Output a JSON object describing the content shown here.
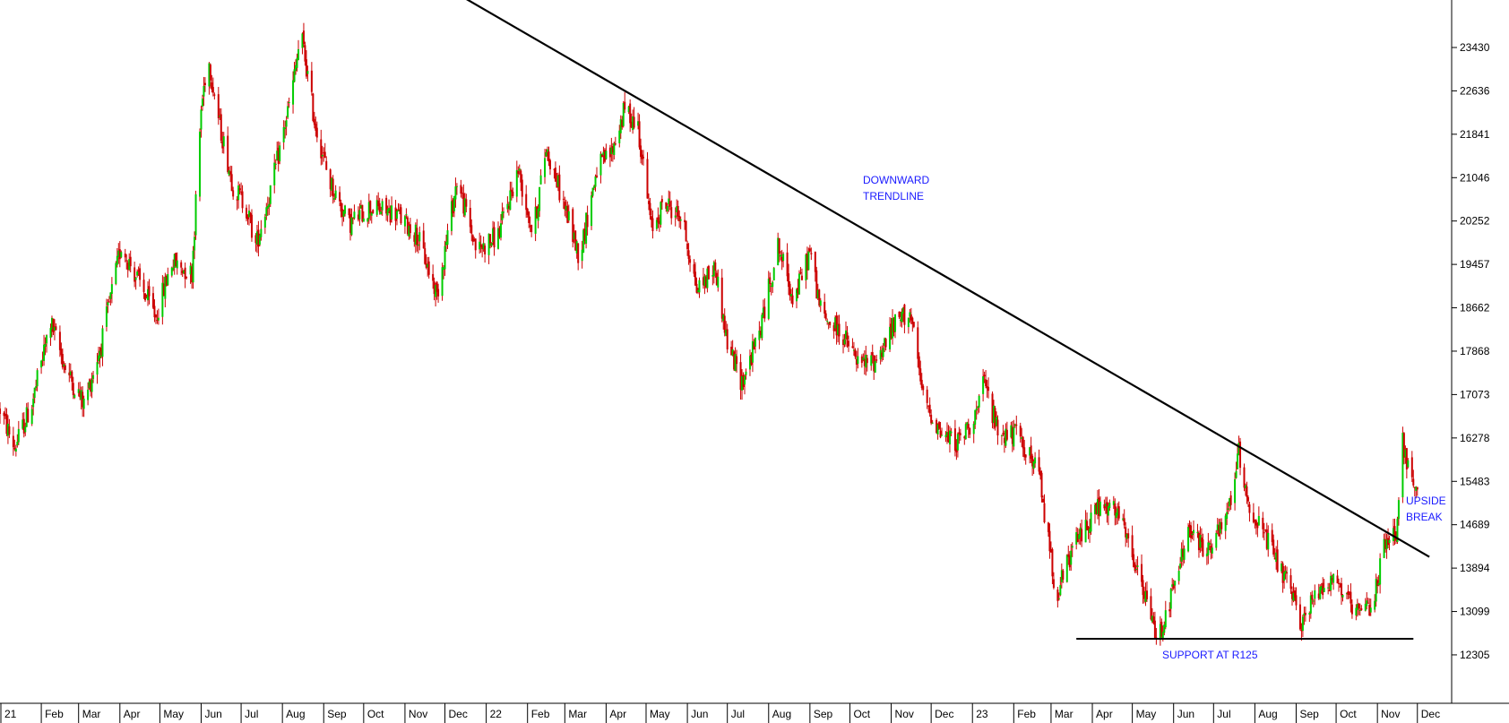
{
  "chart_data": {
    "type": "candlestick",
    "title": "",
    "xlabel": "",
    "ylabel": "",
    "grid": false,
    "colors": {
      "up": "#00cc00",
      "down": "#cc0000",
      "wick": "#cc0000",
      "line": "#000000",
      "annotation": "#1a1aff"
    },
    "y_ticks": [
      "23430",
      "22636",
      "21841",
      "21046",
      "20252",
      "19457",
      "18662",
      "17868",
      "17073",
      "16278",
      "15483",
      "14689",
      "13894",
      "13099",
      "12305"
    ],
    "x_ticks": [
      "21",
      "Feb",
      "Mar",
      "Apr",
      "May",
      "Jun",
      "Jul",
      "Aug",
      "Sep",
      "Oct",
      "Nov",
      "Dec",
      "22",
      "Feb",
      "Mar",
      "Apr",
      "May",
      "Jun",
      "Jul",
      "Aug",
      "Sep",
      "Oct",
      "Nov",
      "Dec",
      "23",
      "Feb",
      "Mar",
      "Apr",
      "May",
      "Jun",
      "Jul",
      "Aug",
      "Sep",
      "Oct",
      "Nov",
      "Dec"
    ],
    "ylim": [
      11500,
      24300
    ],
    "x_start": "2021-01-01",
    "x_end": "2023-12-20",
    "price_path": [
      [
        "2021-01-01",
        16800
      ],
      [
        "2021-01-12",
        16100
      ],
      [
        "2021-01-25",
        16900
      ],
      [
        "2021-02-08",
        18400
      ],
      [
        "2021-02-20",
        17500
      ],
      [
        "2021-03-05",
        16900
      ],
      [
        "2021-03-18",
        18000
      ],
      [
        "2021-04-02",
        19800
      ],
      [
        "2021-04-14",
        19200
      ],
      [
        "2021-04-28",
        18500
      ],
      [
        "2021-05-10",
        19500
      ],
      [
        "2021-05-25",
        19300
      ],
      [
        "2021-06-01",
        22300
      ],
      [
        "2021-06-06",
        23300
      ],
      [
        "2021-06-15",
        22000
      ],
      [
        "2021-06-25",
        20900
      ],
      [
        "2021-07-05",
        20500
      ],
      [
        "2021-07-12",
        19800
      ],
      [
        "2021-07-25",
        21000
      ],
      [
        "2021-08-08",
        22600
      ],
      [
        "2021-08-15",
        23700
      ],
      [
        "2021-08-25",
        22100
      ],
      [
        "2021-09-05",
        21000
      ],
      [
        "2021-09-20",
        20200
      ],
      [
        "2021-10-05",
        20500
      ],
      [
        "2021-10-25",
        20400
      ],
      [
        "2021-11-10",
        20000
      ],
      [
        "2021-11-25",
        18900
      ],
      [
        "2021-12-10",
        21000
      ],
      [
        "2021-12-25",
        19700
      ],
      [
        "2022-01-10",
        20000
      ],
      [
        "2022-01-25",
        21200
      ],
      [
        "2022-02-05",
        20000
      ],
      [
        "2022-02-15",
        21600
      ],
      [
        "2022-03-01",
        20500
      ],
      [
        "2022-03-12",
        19600
      ],
      [
        "2022-03-25",
        21200
      ],
      [
        "2022-04-05",
        21500
      ],
      [
        "2022-04-15",
        22300
      ],
      [
        "2022-04-25",
        22000
      ],
      [
        "2022-05-05",
        20100
      ],
      [
        "2022-05-15",
        20600
      ],
      [
        "2022-05-28",
        20300
      ],
      [
        "2022-06-08",
        19000
      ],
      [
        "2022-06-22",
        19400
      ],
      [
        "2022-07-01",
        18000
      ],
      [
        "2022-07-12",
        17300
      ],
      [
        "2022-07-25",
        18200
      ],
      [
        "2022-08-08",
        19800
      ],
      [
        "2022-08-20",
        18800
      ],
      [
        "2022-09-01",
        19700
      ],
      [
        "2022-09-10",
        18500
      ],
      [
        "2022-09-25",
        18200
      ],
      [
        "2022-10-08",
        17600
      ],
      [
        "2022-10-20",
        17700
      ],
      [
        "2022-11-05",
        18400
      ],
      [
        "2022-11-15",
        18600
      ],
      [
        "2022-11-25",
        17000
      ],
      [
        "2022-12-10",
        16300
      ],
      [
        "2022-12-22",
        16200
      ],
      [
        "2023-01-05",
        16800
      ],
      [
        "2023-01-10",
        17300
      ],
      [
        "2023-01-20",
        16400
      ],
      [
        "2023-02-05",
        16300
      ],
      [
        "2023-02-20",
        15600
      ],
      [
        "2023-03-05",
        13400
      ],
      [
        "2023-03-20",
        14400
      ],
      [
        "2023-04-05",
        15000
      ],
      [
        "2023-04-20",
        14900
      ],
      [
        "2023-05-05",
        13800
      ],
      [
        "2023-05-20",
        12600
      ],
      [
        "2023-06-01",
        13500
      ],
      [
        "2023-06-12",
        14600
      ],
      [
        "2023-06-25",
        14200
      ],
      [
        "2023-07-10",
        14700
      ],
      [
        "2023-07-20",
        16000
      ],
      [
        "2023-07-28",
        15000
      ],
      [
        "2023-08-10",
        14400
      ],
      [
        "2023-08-25",
        13600
      ],
      [
        "2023-09-05",
        12900
      ],
      [
        "2023-09-20",
        13600
      ],
      [
        "2023-10-01",
        13700
      ],
      [
        "2023-10-15",
        13000
      ],
      [
        "2023-10-28",
        13200
      ],
      [
        "2023-11-05",
        14200
      ],
      [
        "2023-11-15",
        14600
      ],
      [
        "2023-11-20",
        16200
      ],
      [
        "2023-11-28",
        15300
      ],
      [
        "2023-12-02",
        15100
      ]
    ],
    "trendlines": [
      {
        "name": "DOWNWARD TRENDLINE",
        "x1": "2021-11-20",
        "y1": 24700,
        "x2": "2023-12-10",
        "y2": 14100
      },
      {
        "name": "SUPPORT AT R125",
        "x1": "2023-03-20",
        "y1": 12600,
        "x2": "2023-11-28",
        "y2": 12600
      }
    ],
    "annotations": {
      "downward_line1": "DOWNWARD",
      "downward_line2": "TRENDLINE",
      "support": "SUPPORT AT R125",
      "upside_line1": "UPSIDE",
      "upside_line2": "BREAK"
    }
  }
}
